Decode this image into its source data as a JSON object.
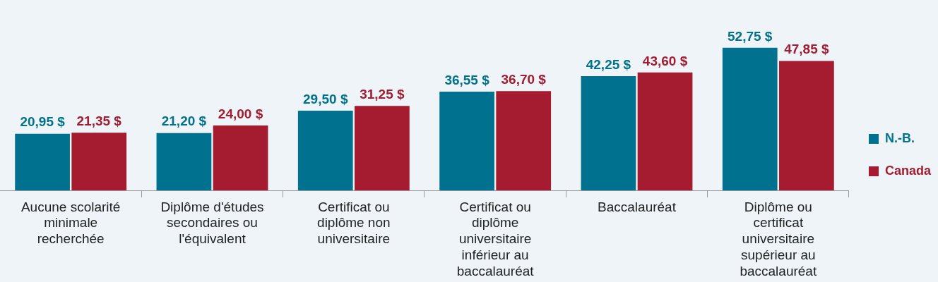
{
  "chart_data": {
    "type": "bar",
    "categories": [
      "Aucune scolarité minimale recherchée",
      "Diplôme d'études secondaires ou l'équivalent",
      "Certificat ou diplôme non universitaire",
      "Certificat ou diplôme universitaire inférieur au baccalauréat",
      "Baccalauréat",
      "Diplôme ou certificat universitaire supérieur au baccalauréat"
    ],
    "series": [
      {
        "name": "N.-B.",
        "color": "#00728f",
        "values": [
          20.95,
          21.2,
          29.5,
          36.55,
          42.25,
          52.75
        ],
        "value_labels": [
          "20,95 $",
          "21,20 $",
          "29,50 $",
          "36,55 $",
          "42,25 $",
          "52,75 $"
        ]
      },
      {
        "name": "Canada",
        "color": "#a51c30",
        "values": [
          21.35,
          24.0,
          31.25,
          36.7,
          43.6,
          47.85
        ],
        "value_labels": [
          "21,35 $",
          "24,00 $",
          "31,25 $",
          "36,70 $",
          "43,60 $",
          "47,85 $"
        ]
      }
    ],
    "legend": "right",
    "grid": false
  }
}
